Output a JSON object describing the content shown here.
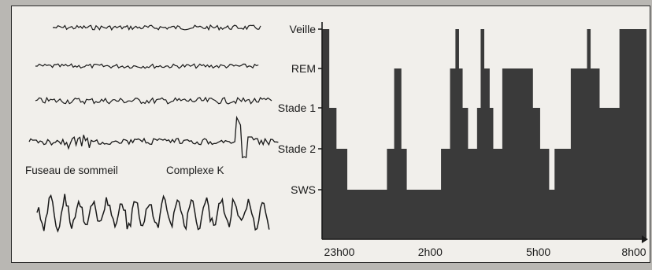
{
  "eeg_panel": {
    "labels": {
      "spindle": "Fuseau de sommeil",
      "k_complex": "Complexe K"
    }
  },
  "chart_data": {
    "type": "area",
    "y_categories": [
      "Veille",
      "REM",
      "Stade 1",
      "Stade 2",
      "SWS"
    ],
    "x_ticks": [
      "23h00",
      "2h00",
      "5h00",
      "8h00"
    ],
    "x_range": [
      "23h00",
      "8h00"
    ],
    "fill_color": "#3a3a3a",
    "series": [
      {
        "x_hours": [
          0,
          0.2,
          0.4,
          0.7,
          1.8,
          2.0,
          2.2,
          2.35,
          2.5,
          3.3,
          3.55,
          3.7,
          3.8,
          3.9,
          4.05,
          4.3,
          4.4,
          4.5,
          4.65,
          4.75,
          5.0,
          5.15,
          5.85,
          6.05,
          6.3,
          6.45,
          6.9,
          7.2,
          7.35,
          7.45,
          7.6,
          7.7,
          8.25,
          8.4,
          9.0
        ],
        "stage": [
          "Veille",
          "Stade 1",
          "Stade 2",
          "SWS",
          "Stade 2",
          "REM",
          "Stade 2",
          "SWS",
          "SWS",
          "Stade 2",
          "REM",
          "Veille",
          "REM",
          "Stade 1",
          "Stade 2",
          "Stade 1",
          "Veille",
          "REM",
          "Stade 1",
          "Stade 2",
          "REM",
          "REM",
          "Stade 1",
          "Stade 2",
          "SWS",
          "Stade 2",
          "REM",
          "REM",
          "Veille",
          "REM",
          "REM",
          "Stade 1",
          "Veille",
          "Veille",
          "Veille"
        ]
      }
    ]
  }
}
